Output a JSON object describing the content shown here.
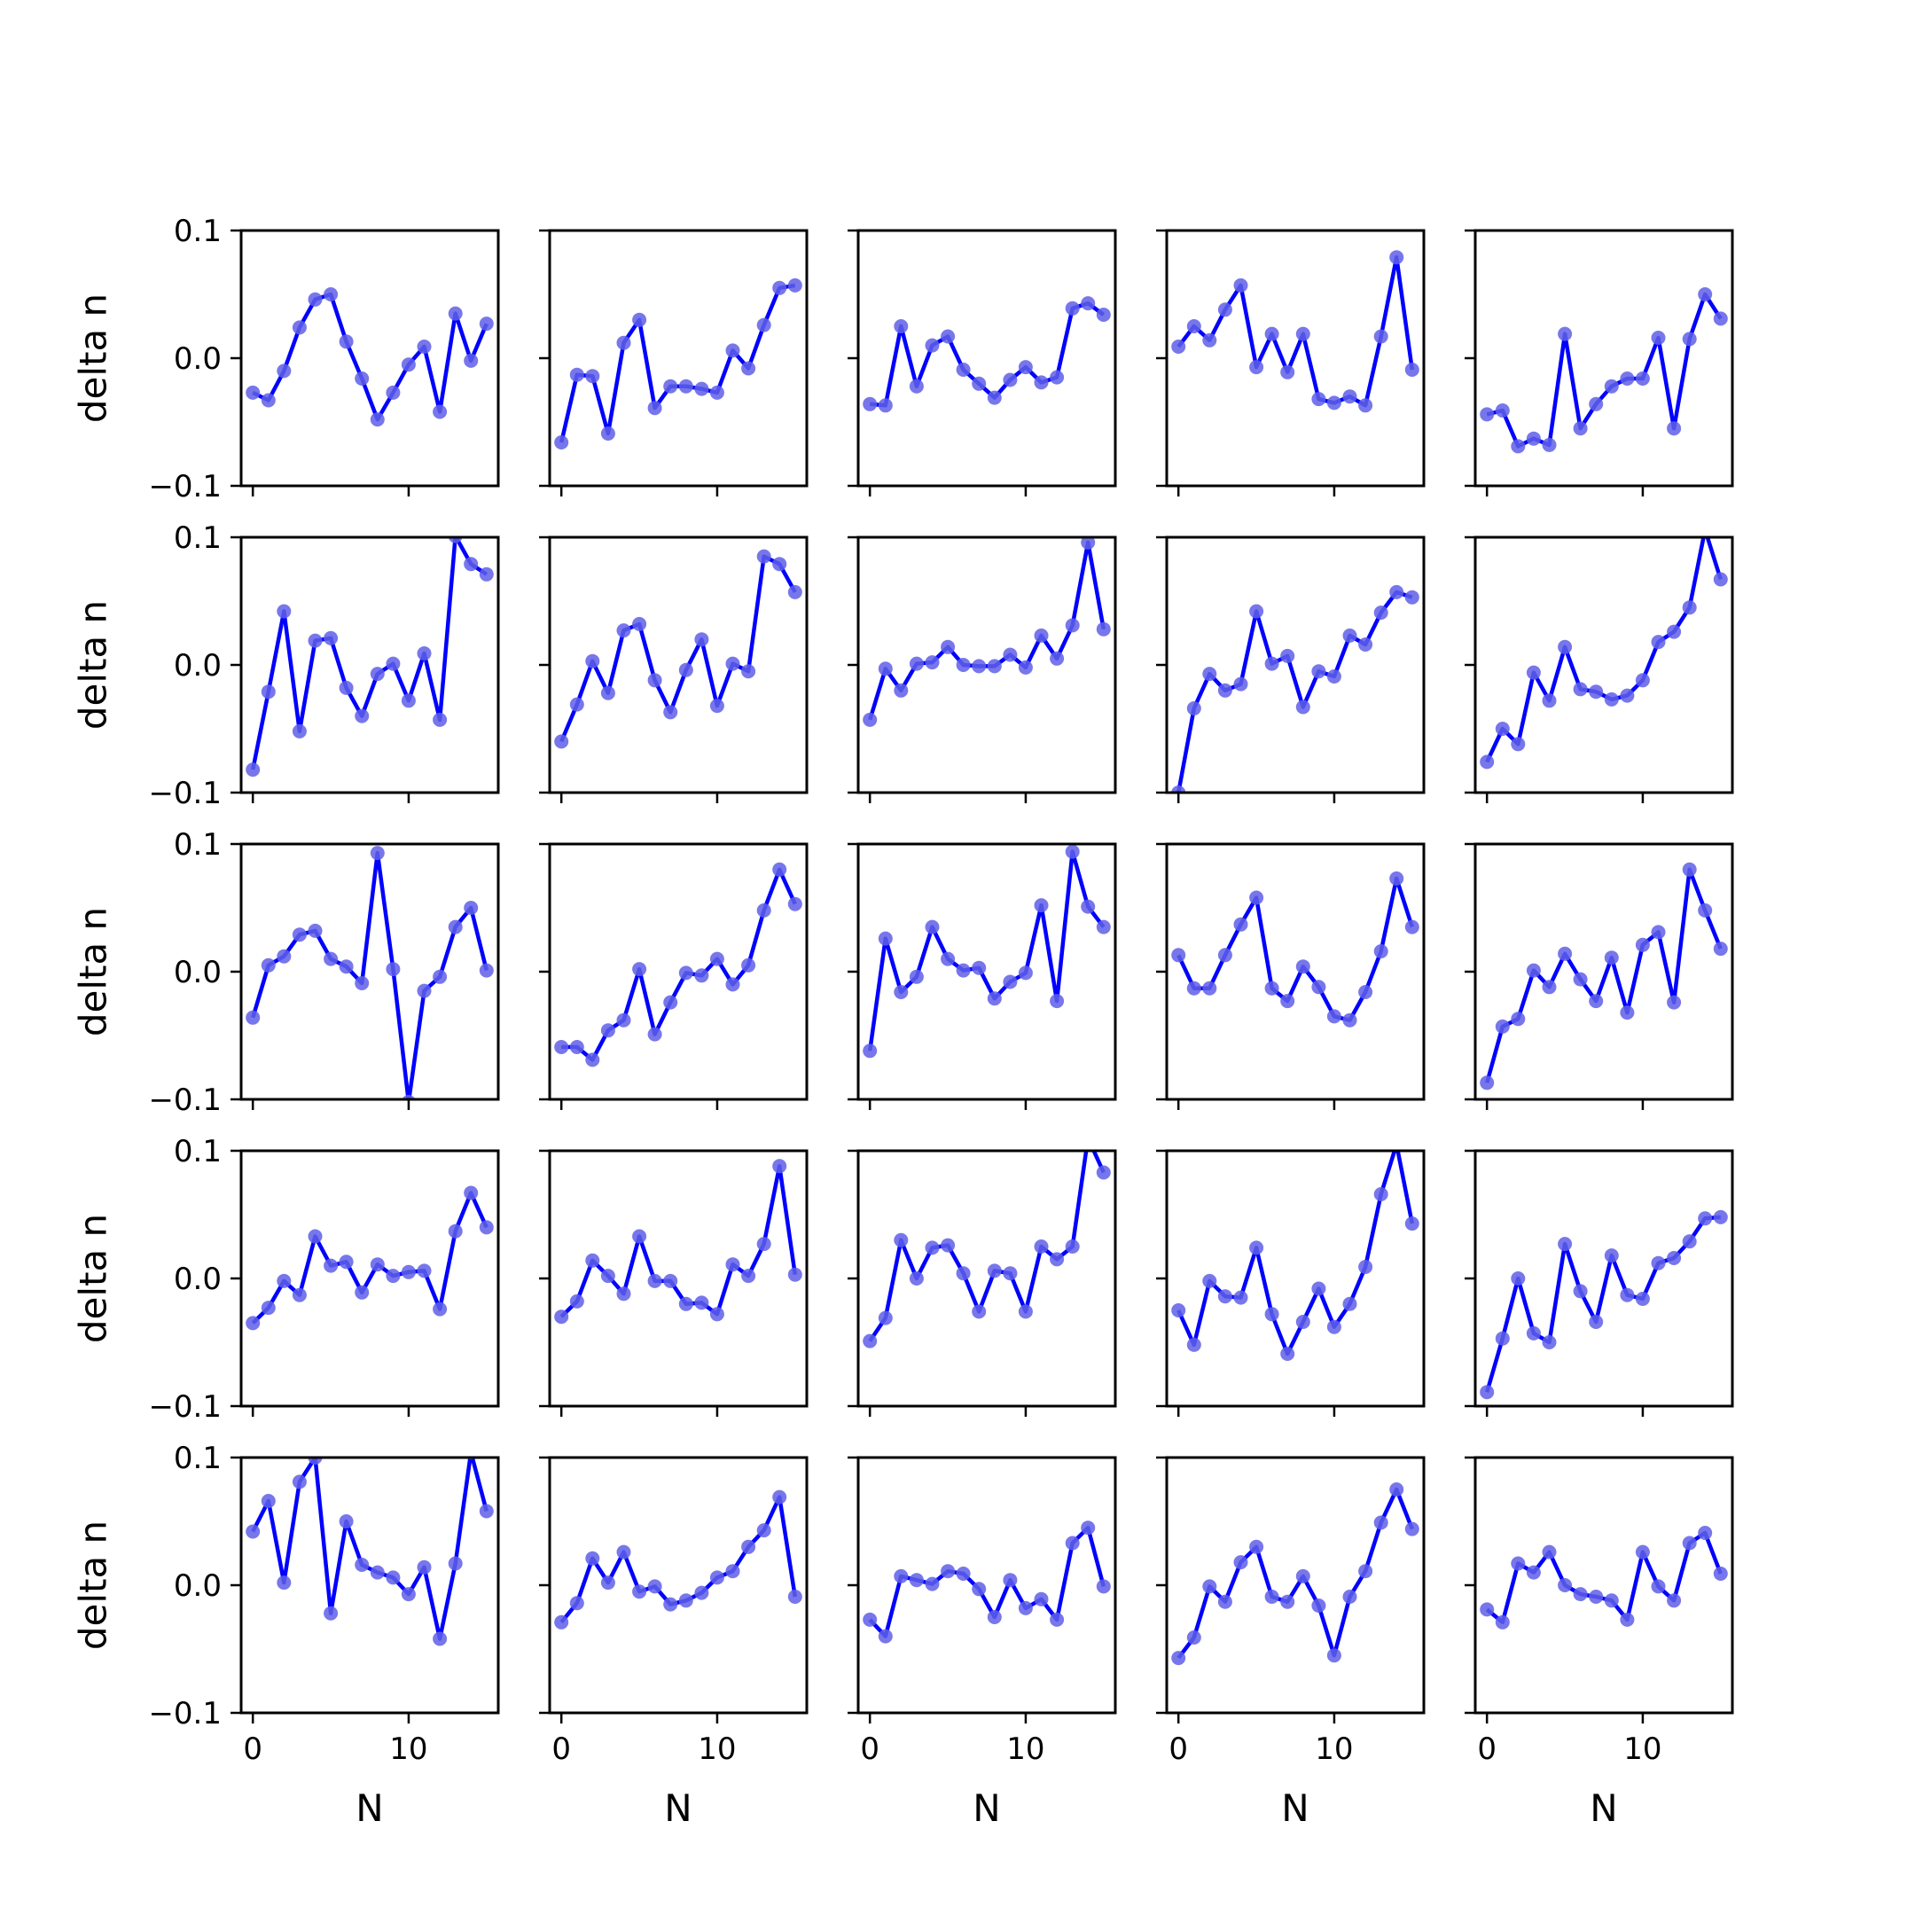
{
  "chart_data": {
    "type": "line",
    "layout": "5x5 grid of small multiples (shared x and y axes)",
    "xlabel": "N",
    "ylabel": "delta n",
    "xlim": [
      -0.75,
      15.75
    ],
    "ylim": [
      -0.1,
      0.1
    ],
    "xticks": [
      0,
      10
    ],
    "xtick_labels": [
      "0",
      "10"
    ],
    "yticks": [
      -0.1,
      0.0,
      0.1
    ],
    "ytick_labels": [
      "−0.1",
      "0.0",
      "0.1"
    ],
    "grid": false,
    "line_color": "#0000ff",
    "marker_color": "#5f5fe8",
    "x": [
      0,
      1,
      2,
      3,
      4,
      5,
      6,
      7,
      8,
      9,
      10,
      11,
      12,
      13,
      14,
      15
    ],
    "panels": [
      {
        "row": 1,
        "col": 1,
        "values": [
          -0.027,
          -0.033,
          -0.01,
          0.024,
          0.046,
          0.05,
          0.013,
          -0.016,
          -0.048,
          -0.027,
          -0.005,
          0.009,
          -0.042,
          0.035,
          -0.002,
          0.027
        ]
      },
      {
        "row": 1,
        "col": 2,
        "values": [
          -0.066,
          -0.013,
          -0.014,
          -0.059,
          0.012,
          0.03,
          -0.039,
          -0.022,
          -0.022,
          -0.024,
          -0.027,
          0.006,
          -0.008,
          0.026,
          0.055,
          0.057
        ]
      },
      {
        "row": 1,
        "col": 3,
        "values": [
          -0.036,
          -0.037,
          0.025,
          -0.022,
          0.01,
          0.017,
          -0.009,
          -0.02,
          -0.031,
          -0.017,
          -0.007,
          -0.019,
          -0.015,
          0.039,
          0.043,
          0.034
        ]
      },
      {
        "row": 1,
        "col": 4,
        "values": [
          0.009,
          0.025,
          0.014,
          0.038,
          0.057,
          -0.007,
          0.019,
          -0.011,
          0.019,
          -0.032,
          -0.035,
          -0.03,
          -0.037,
          0.017,
          0.079,
          -0.009
        ]
      },
      {
        "row": 1,
        "col": 5,
        "values": [
          -0.044,
          -0.041,
          -0.069,
          -0.063,
          -0.068,
          0.019,
          -0.055,
          -0.036,
          -0.022,
          -0.016,
          -0.016,
          0.016,
          -0.055,
          0.015,
          0.05,
          0.031
        ]
      },
      {
        "row": 2,
        "col": 1,
        "values": [
          -0.082,
          -0.021,
          0.042,
          -0.052,
          0.019,
          0.021,
          -0.018,
          -0.04,
          -0.007,
          0.001,
          -0.028,
          0.009,
          -0.043,
          0.101,
          0.079,
          0.071
        ]
      },
      {
        "row": 2,
        "col": 2,
        "values": [
          -0.06,
          -0.031,
          0.003,
          -0.022,
          0.027,
          0.032,
          -0.012,
          -0.037,
          -0.004,
          0.02,
          -0.032,
          0.001,
          -0.005,
          0.085,
          0.079,
          0.057
        ]
      },
      {
        "row": 2,
        "col": 3,
        "values": [
          -0.043,
          -0.003,
          -0.02,
          0.001,
          0.002,
          0.014,
          0.0,
          -0.001,
          -0.001,
          0.008,
          -0.002,
          0.023,
          0.005,
          0.031,
          0.096,
          0.028
        ]
      },
      {
        "row": 2,
        "col": 4,
        "values": [
          -0.1,
          -0.034,
          -0.007,
          -0.02,
          -0.015,
          0.042,
          0.001,
          0.007,
          -0.033,
          -0.005,
          -0.009,
          0.023,
          0.016,
          0.041,
          0.057,
          0.053
        ]
      },
      {
        "row": 2,
        "col": 5,
        "values": [
          -0.076,
          -0.05,
          -0.062,
          -0.006,
          -0.028,
          0.014,
          -0.019,
          -0.021,
          -0.027,
          -0.024,
          -0.012,
          0.018,
          0.026,
          0.045,
          0.106,
          0.067
        ]
      },
      {
        "row": 3,
        "col": 1,
        "values": [
          -0.036,
          0.005,
          0.012,
          0.029,
          0.032,
          0.01,
          0.004,
          -0.009,
          0.093,
          0.002,
          -0.102,
          -0.015,
          -0.004,
          0.035,
          0.05,
          0.001
        ]
      },
      {
        "row": 3,
        "col": 2,
        "values": [
          -0.059,
          -0.059,
          -0.069,
          -0.046,
          -0.038,
          0.002,
          -0.049,
          -0.024,
          -0.001,
          -0.003,
          0.01,
          -0.01,
          0.005,
          0.048,
          0.08,
          0.053
        ]
      },
      {
        "row": 3,
        "col": 3,
        "values": [
          -0.062,
          0.026,
          -0.016,
          -0.004,
          0.035,
          0.01,
          0.001,
          0.003,
          -0.021,
          -0.008,
          -0.001,
          0.052,
          -0.023,
          0.094,
          0.051,
          0.035
        ]
      },
      {
        "row": 3,
        "col": 4,
        "values": [
          0.013,
          -0.013,
          -0.013,
          0.013,
          0.037,
          0.058,
          -0.013,
          -0.023,
          0.004,
          -0.012,
          -0.035,
          -0.038,
          -0.016,
          0.016,
          0.073,
          0.035
        ]
      },
      {
        "row": 3,
        "col": 5,
        "values": [
          -0.087,
          -0.043,
          -0.037,
          0.001,
          -0.012,
          0.014,
          -0.006,
          -0.023,
          0.011,
          -0.032,
          0.021,
          0.031,
          -0.024,
          0.08,
          0.048,
          0.018
        ]
      },
      {
        "row": 4,
        "col": 1,
        "values": [
          -0.035,
          -0.023,
          -0.002,
          -0.013,
          0.033,
          0.01,
          0.013,
          -0.011,
          0.011,
          0.002,
          0.005,
          0.006,
          -0.024,
          0.037,
          0.067,
          0.04
        ]
      },
      {
        "row": 4,
        "col": 2,
        "values": [
          -0.03,
          -0.018,
          0.014,
          0.002,
          -0.012,
          0.033,
          -0.002,
          -0.002,
          -0.02,
          -0.019,
          -0.028,
          0.011,
          0.002,
          0.027,
          0.088,
          0.003
        ]
      },
      {
        "row": 4,
        "col": 3,
        "values": [
          -0.049,
          -0.031,
          0.03,
          0.0,
          0.024,
          0.026,
          0.004,
          -0.026,
          0.006,
          0.004,
          -0.026,
          0.025,
          0.015,
          0.025,
          0.11,
          0.083
        ]
      },
      {
        "row": 4,
        "col": 4,
        "values": [
          -0.025,
          -0.052,
          -0.002,
          -0.014,
          -0.015,
          0.024,
          -0.028,
          -0.059,
          -0.034,
          -0.008,
          -0.038,
          -0.02,
          0.009,
          0.066,
          0.105,
          0.043
        ]
      },
      {
        "row": 4,
        "col": 5,
        "values": [
          -0.089,
          -0.047,
          0.0,
          -0.043,
          -0.05,
          0.027,
          -0.01,
          -0.034,
          0.018,
          -0.013,
          -0.016,
          0.012,
          0.016,
          0.029,
          0.047,
          0.048
        ]
      },
      {
        "row": 5,
        "col": 1,
        "values": [
          0.042,
          0.066,
          0.002,
          0.081,
          0.1,
          -0.022,
          0.05,
          0.016,
          0.01,
          0.006,
          -0.007,
          0.014,
          -0.042,
          0.017,
          0.104,
          0.058
        ]
      },
      {
        "row": 5,
        "col": 2,
        "values": [
          -0.029,
          -0.014,
          0.021,
          0.002,
          0.026,
          -0.005,
          -0.001,
          -0.015,
          -0.012,
          -0.006,
          0.006,
          0.011,
          0.03,
          0.043,
          0.069,
          -0.009
        ]
      },
      {
        "row": 5,
        "col": 3,
        "values": [
          -0.027,
          -0.04,
          0.007,
          0.004,
          0.001,
          0.011,
          0.009,
          -0.003,
          -0.025,
          0.004,
          -0.018,
          -0.011,
          -0.027,
          0.033,
          0.045,
          -0.001
        ]
      },
      {
        "row": 5,
        "col": 4,
        "values": [
          -0.057,
          -0.041,
          -0.001,
          -0.013,
          0.018,
          0.03,
          -0.009,
          -0.013,
          0.007,
          -0.016,
          -0.055,
          -0.009,
          0.011,
          0.049,
          0.075,
          0.044
        ]
      },
      {
        "row": 5,
        "col": 5,
        "values": [
          -0.019,
          -0.029,
          0.017,
          0.01,
          0.026,
          0.0,
          -0.007,
          -0.009,
          -0.012,
          -0.027,
          0.026,
          -0.001,
          -0.012,
          0.033,
          0.041,
          0.009
        ]
      }
    ]
  }
}
